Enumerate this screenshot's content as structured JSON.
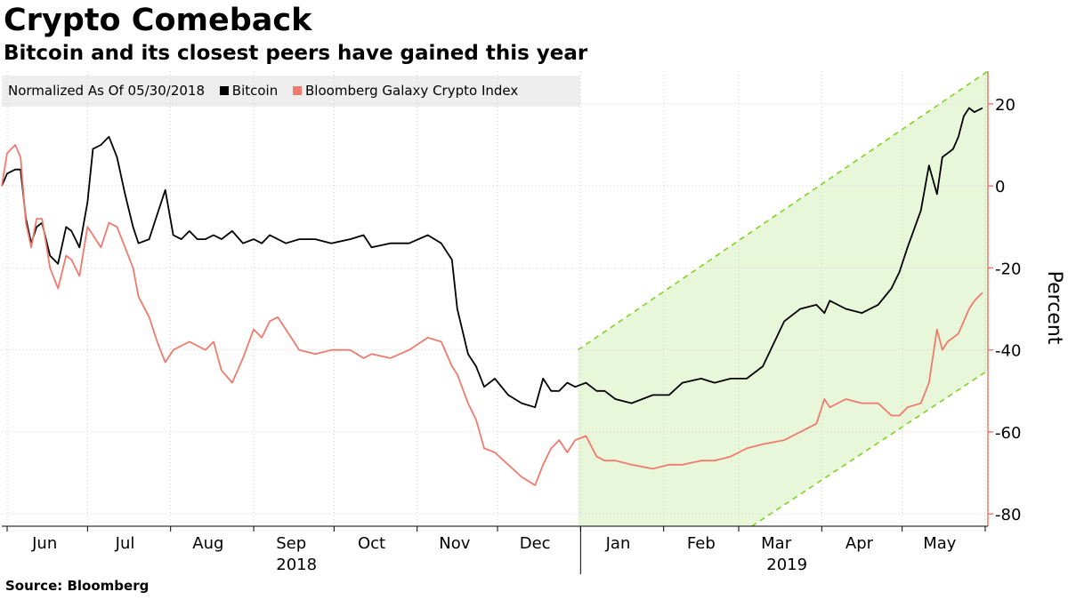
{
  "chart_data": {
    "type": "line",
    "title": "Crypto Comeback",
    "subtitle": "Bitcoin and its closest peers have gained this year",
    "legend_note": "Normalized As Of 05/30/2018",
    "legend_placement": "top-left",
    "ylabel": "Percent",
    "ylim": [
      -83,
      28
    ],
    "yticks": [
      20,
      0,
      -20,
      -40,
      -60,
      -80
    ],
    "ytick_labels": [
      "20",
      "0",
      "-20",
      "-40",
      "-60",
      "-80"
    ],
    "x_range": [
      "2018-05-30",
      "2019-06-02"
    ],
    "month_ticks": [
      {
        "label": "Jun",
        "date": "2018-06-15"
      },
      {
        "label": "Jul",
        "date": "2018-07-15"
      },
      {
        "label": "Aug",
        "date": "2018-08-15"
      },
      {
        "label": "Sep",
        "date": "2018-09-15"
      },
      {
        "label": "Oct",
        "date": "2018-10-15"
      },
      {
        "label": "Nov",
        "date": "2018-11-15"
      },
      {
        "label": "Dec",
        "date": "2018-12-15"
      },
      {
        "label": "Jan",
        "date": "2019-01-15"
      },
      {
        "label": "Feb",
        "date": "2019-02-15"
      },
      {
        "label": "Mar",
        "date": "2019-03-15"
      },
      {
        "label": "Apr",
        "date": "2019-04-15"
      },
      {
        "label": "May",
        "date": "2019-05-15"
      }
    ],
    "year_labels": [
      {
        "label": "2018",
        "date": "2018-09-17"
      },
      {
        "label": "2019",
        "date": "2019-03-19"
      }
    ],
    "grid": true,
    "series": [
      {
        "name": "Bitcoin",
        "color": "#000000",
        "dates": [
          "2018-05-30",
          "2018-06-01",
          "2018-06-04",
          "2018-06-06",
          "2018-06-08",
          "2018-06-10",
          "2018-06-12",
          "2018-06-14",
          "2018-06-17",
          "2018-06-20",
          "2018-06-23",
          "2018-06-25",
          "2018-06-28",
          "2018-07-01",
          "2018-07-03",
          "2018-07-06",
          "2018-07-09",
          "2018-07-12",
          "2018-07-15",
          "2018-07-18",
          "2018-07-20",
          "2018-07-24",
          "2018-07-27",
          "2018-07-30",
          "2018-08-02",
          "2018-08-05",
          "2018-08-08",
          "2018-08-11",
          "2018-08-14",
          "2018-08-17",
          "2018-08-20",
          "2018-08-24",
          "2018-08-28",
          "2018-09-01",
          "2018-09-04",
          "2018-09-07",
          "2018-09-10",
          "2018-09-13",
          "2018-09-18",
          "2018-09-24",
          "2018-09-30",
          "2018-10-07",
          "2018-10-12",
          "2018-10-15",
          "2018-10-22",
          "2018-10-29",
          "2018-11-05",
          "2018-11-10",
          "2018-11-14",
          "2018-11-16",
          "2018-11-20",
          "2018-11-23",
          "2018-11-26",
          "2018-11-30",
          "2018-12-05",
          "2018-12-10",
          "2018-12-15",
          "2018-12-18",
          "2018-12-21",
          "2018-12-24",
          "2018-12-27",
          "2018-12-30",
          "2019-01-03",
          "2019-01-07",
          "2019-01-10",
          "2019-01-14",
          "2019-01-20",
          "2019-01-28",
          "2019-02-03",
          "2019-02-08",
          "2019-02-15",
          "2019-02-20",
          "2019-02-26",
          "2019-03-04",
          "2019-03-10",
          "2019-03-18",
          "2019-03-24",
          "2019-03-30",
          "2019-04-02",
          "2019-04-04",
          "2019-04-10",
          "2019-04-16",
          "2019-04-22",
          "2019-04-27",
          "2019-04-30",
          "2019-05-03",
          "2019-05-08",
          "2019-05-11",
          "2019-05-14",
          "2019-05-16",
          "2019-05-18",
          "2019-05-20",
          "2019-05-22",
          "2019-05-24",
          "2019-05-26",
          "2019-05-28",
          "2019-05-31"
        ],
        "values": [
          0,
          3,
          4,
          4,
          -8,
          -14,
          -10,
          -9,
          -17,
          -19,
          -10,
          -11,
          -15,
          -4,
          9,
          10,
          12,
          7,
          -2,
          -10,
          -14,
          -13,
          -7,
          -1,
          -12,
          -13,
          -11,
          -13,
          -13,
          -12,
          -13,
          -11,
          -14,
          -13,
          -14,
          -12,
          -13,
          -14,
          -13,
          -13,
          -14,
          -13,
          -12,
          -15,
          -14,
          -14,
          -12,
          -14,
          -18,
          -30,
          -41,
          -44,
          -49,
          -47,
          -51,
          -53,
          -54,
          -47,
          -50,
          -50,
          -48,
          -49,
          -48,
          -50,
          -50,
          -52,
          -53,
          -51,
          -51,
          -48,
          -47,
          -48,
          -47,
          -47,
          -44,
          -33,
          -30,
          -29,
          -31,
          -28,
          -30,
          -31,
          -29,
          -25,
          -21,
          -15,
          -6,
          5,
          -2,
          7,
          8,
          9,
          12,
          17,
          19,
          18,
          19
        ]
      },
      {
        "name": "Bloomberg Galaxy Crypto Index",
        "color": "#f07a6e",
        "dates": [
          "2018-05-30",
          "2018-06-01",
          "2018-06-04",
          "2018-06-06",
          "2018-06-08",
          "2018-06-10",
          "2018-06-12",
          "2018-06-14",
          "2018-06-17",
          "2018-06-20",
          "2018-06-23",
          "2018-06-25",
          "2018-06-28",
          "2018-07-01",
          "2018-07-03",
          "2018-07-06",
          "2018-07-09",
          "2018-07-12",
          "2018-07-15",
          "2018-07-18",
          "2018-07-20",
          "2018-07-24",
          "2018-07-27",
          "2018-07-30",
          "2018-08-02",
          "2018-08-05",
          "2018-08-08",
          "2018-08-11",
          "2018-08-14",
          "2018-08-17",
          "2018-08-20",
          "2018-08-24",
          "2018-08-28",
          "2018-09-01",
          "2018-09-04",
          "2018-09-07",
          "2018-09-10",
          "2018-09-13",
          "2018-09-18",
          "2018-09-24",
          "2018-09-30",
          "2018-10-07",
          "2018-10-12",
          "2018-10-15",
          "2018-10-22",
          "2018-10-29",
          "2018-11-05",
          "2018-11-10",
          "2018-11-14",
          "2018-11-16",
          "2018-11-20",
          "2018-11-23",
          "2018-11-26",
          "2018-11-30",
          "2018-12-05",
          "2018-12-10",
          "2018-12-15",
          "2018-12-18",
          "2018-12-21",
          "2018-12-24",
          "2018-12-27",
          "2018-12-30",
          "2019-01-03",
          "2019-01-07",
          "2019-01-10",
          "2019-01-14",
          "2019-01-20",
          "2019-01-28",
          "2019-02-03",
          "2019-02-08",
          "2019-02-15",
          "2019-02-20",
          "2019-02-26",
          "2019-03-04",
          "2019-03-10",
          "2019-03-18",
          "2019-03-24",
          "2019-03-30",
          "2019-04-02",
          "2019-04-04",
          "2019-04-10",
          "2019-04-16",
          "2019-04-22",
          "2019-04-27",
          "2019-04-30",
          "2019-05-03",
          "2019-05-08",
          "2019-05-11",
          "2019-05-14",
          "2019-05-16",
          "2019-05-18",
          "2019-05-20",
          "2019-05-22",
          "2019-05-24",
          "2019-05-26",
          "2019-05-28",
          "2019-05-31"
        ],
        "values": [
          0,
          8,
          10,
          7,
          -9,
          -15,
          -8,
          -8,
          -20,
          -25,
          -17,
          -18,
          -22,
          -10,
          -12,
          -15,
          -9,
          -10,
          -15,
          -20,
          -27,
          -32,
          -38,
          -43,
          -40,
          -39,
          -38,
          -39,
          -40,
          -38,
          -45,
          -48,
          -42,
          -35,
          -37,
          -33,
          -32,
          -35,
          -40,
          -41,
          -40,
          -40,
          -42,
          -41,
          -42,
          -40,
          -37,
          -38,
          -44,
          -46,
          -53,
          -57,
          -64,
          -65,
          -68,
          -71,
          -73,
          -68,
          -64,
          -62,
          -65,
          -62,
          -61,
          -66,
          -67,
          -67,
          -68,
          -69,
          -68,
          -68,
          -67,
          -67,
          -66,
          -64,
          -63,
          -62,
          -60,
          -58,
          -52,
          -54,
          -52,
          -53,
          -53,
          -56,
          -56,
          -54,
          -53,
          -48,
          -35,
          -40,
          -38,
          -37,
          -36,
          -33,
          -30,
          -28,
          -26
        ]
      }
    ],
    "trend_channel": {
      "color": "#7fd321",
      "fill": "#e8f7d9",
      "x_start": "2018-12-31",
      "x_end": "2019-06-02",
      "upper": [
        -40,
        28
      ],
      "lower": [
        -111,
        -45
      ]
    },
    "source": "Source:  Bloomberg"
  }
}
